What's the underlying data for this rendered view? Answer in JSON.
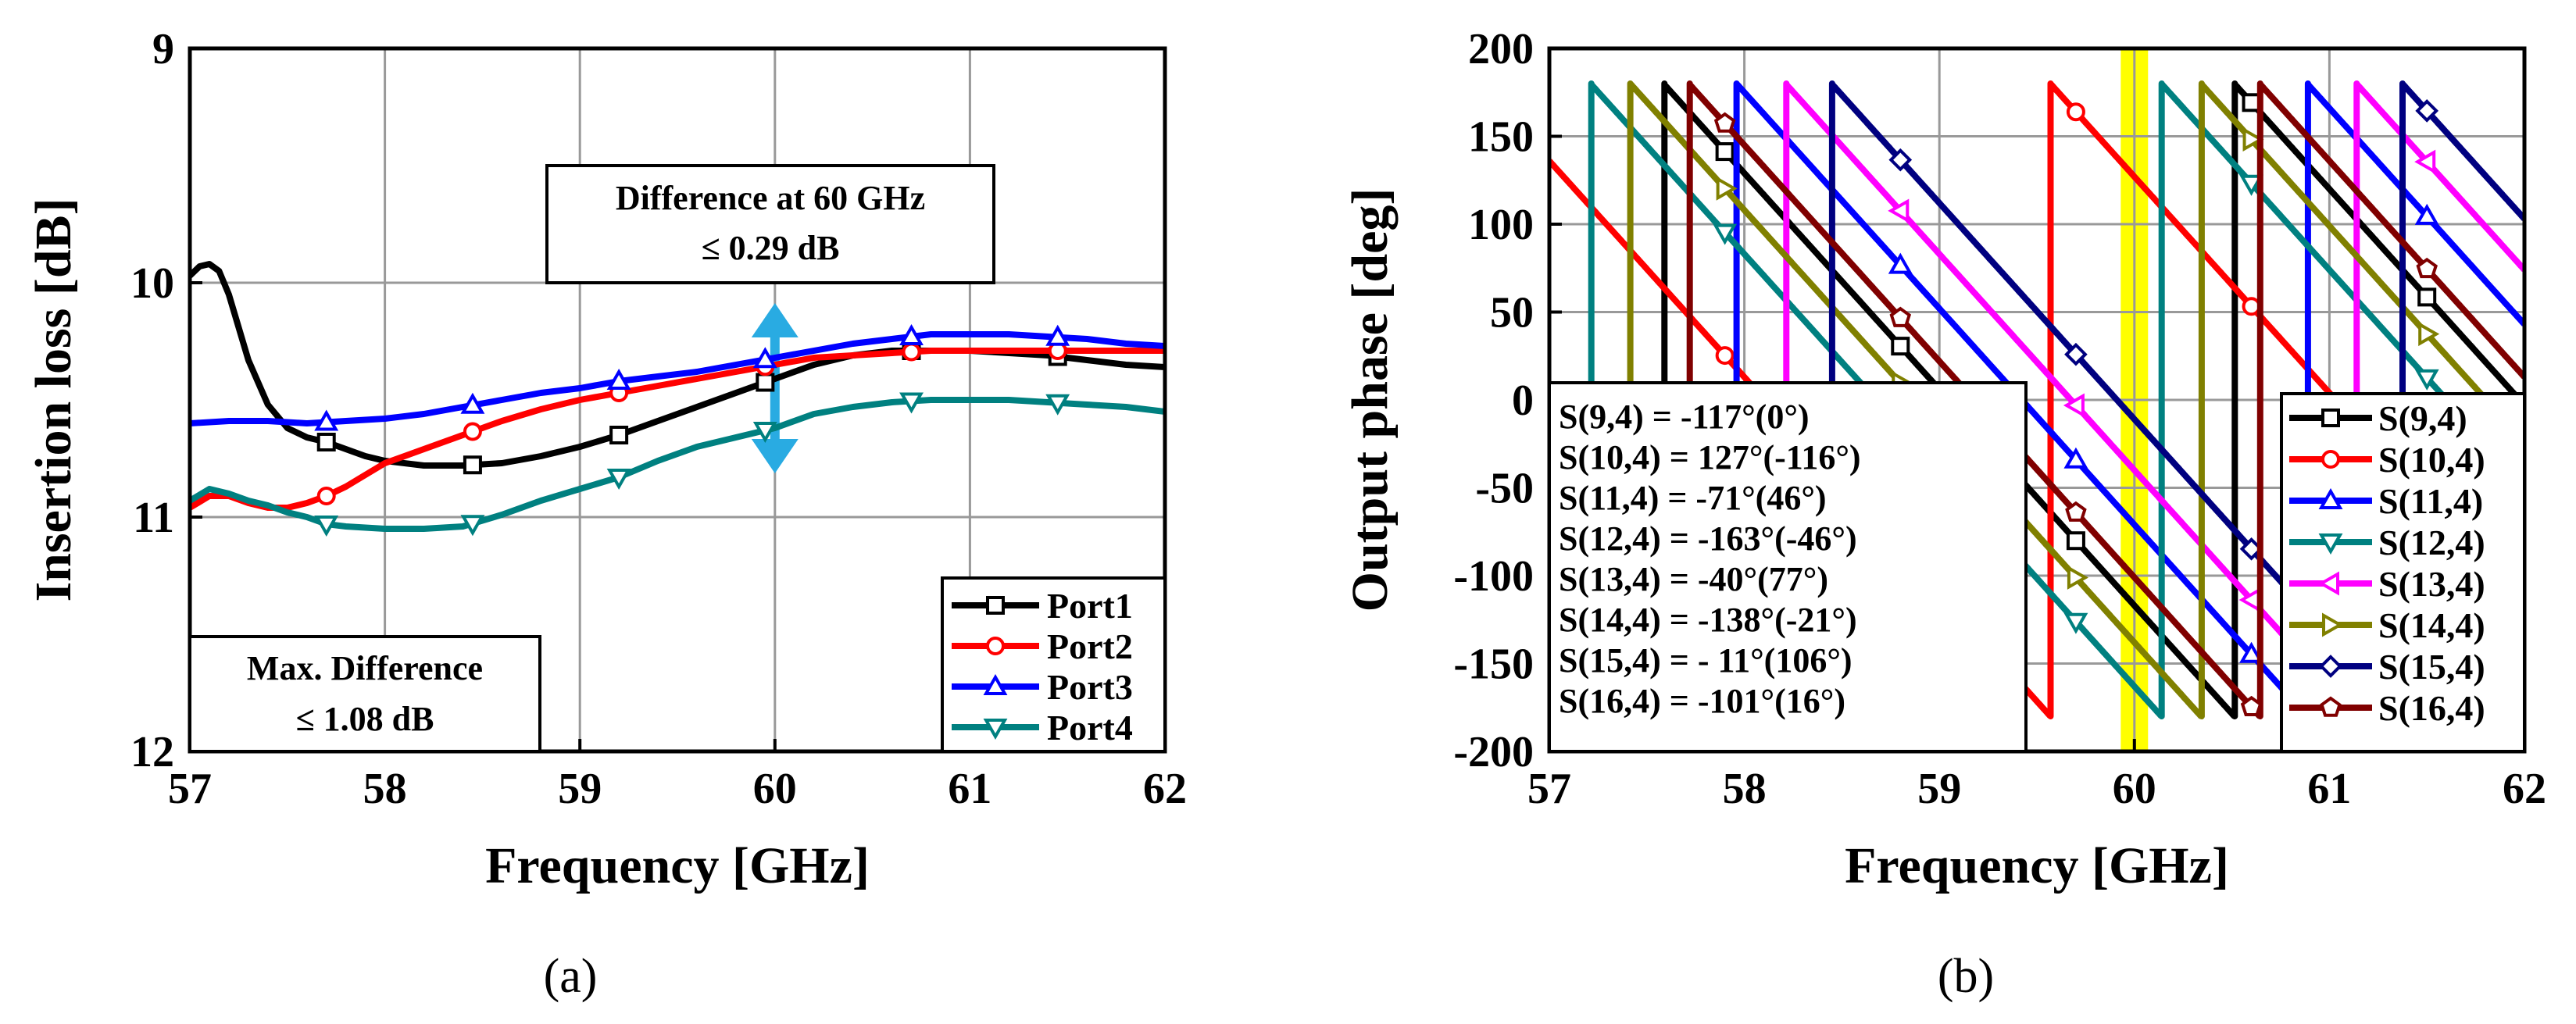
{
  "chart_data": [
    {
      "type": "line",
      "panel_label": "(a)",
      "xlabel": "Frequency [GHz]",
      "ylabel": "Insertion loss [dB]",
      "xlim": [
        57,
        62
      ],
      "ylim": [
        12,
        9
      ],
      "y_inverted": true,
      "x_ticks": [
        "57",
        "58",
        "59",
        "60",
        "61",
        "62"
      ],
      "y_ticks": [
        "9",
        "10",
        "11",
        "12"
      ],
      "grid": true,
      "legend_position": "bottom-right",
      "annotations": {
        "top_box_line1": "Difference at 60 GHz",
        "top_box_line2": "≤ 0.29 dB",
        "bottom_box_line1": "Max. Difference",
        "bottom_box_line2": "≤ 1.08 dB",
        "arrow_x": 60,
        "arrow_y_range": [
          10.1,
          10.8
        ]
      },
      "series": [
        {
          "name": "Port1",
          "color": "#000000",
          "marker": "square",
          "x": [
            57.0,
            57.05,
            57.1,
            57.15,
            57.2,
            57.3,
            57.4,
            57.5,
            57.6,
            57.7,
            57.8,
            57.9,
            58.0,
            58.2,
            58.4,
            58.6,
            58.8,
            59.0,
            59.2,
            59.4,
            59.6,
            59.8,
            60.0,
            60.2,
            60.4,
            60.6,
            60.8,
            61.0,
            61.2,
            61.4,
            61.6,
            61.8,
            62.0
          ],
          "y": [
            9.97,
            9.93,
            9.92,
            9.95,
            10.05,
            10.33,
            10.52,
            10.62,
            10.66,
            10.68,
            10.71,
            10.74,
            10.76,
            10.78,
            10.78,
            10.77,
            10.74,
            10.7,
            10.65,
            10.59,
            10.53,
            10.47,
            10.41,
            10.35,
            10.31,
            10.29,
            10.29,
            10.29,
            10.3,
            10.31,
            10.33,
            10.35,
            10.36
          ]
        },
        {
          "name": "Port2",
          "color": "#ff0000",
          "marker": "circle",
          "x": [
            57.0,
            57.1,
            57.2,
            57.3,
            57.4,
            57.5,
            57.6,
            57.7,
            57.8,
            57.9,
            58.0,
            58.2,
            58.4,
            58.6,
            58.8,
            59.0,
            59.2,
            59.4,
            59.6,
            59.8,
            60.0,
            60.2,
            60.4,
            60.6,
            60.8,
            61.0,
            61.2,
            61.4,
            61.6,
            61.8,
            62.0
          ],
          "y": [
            10.96,
            10.91,
            10.91,
            10.94,
            10.96,
            10.96,
            10.94,
            10.91,
            10.87,
            10.82,
            10.77,
            10.71,
            10.65,
            10.59,
            10.54,
            10.5,
            10.47,
            10.44,
            10.41,
            10.38,
            10.35,
            10.32,
            10.31,
            10.3,
            10.29,
            10.29,
            10.29,
            10.29,
            10.29,
            10.29,
            10.29
          ]
        },
        {
          "name": "Port3",
          "color": "#0000ff",
          "marker": "triangle-up",
          "x": [
            57.0,
            57.2,
            57.4,
            57.6,
            57.8,
            58.0,
            58.2,
            58.4,
            58.6,
            58.8,
            59.0,
            59.2,
            59.4,
            59.6,
            59.8,
            60.0,
            60.2,
            60.4,
            60.6,
            60.8,
            61.0,
            61.2,
            61.4,
            61.6,
            61.8,
            62.0
          ],
          "y": [
            10.6,
            10.59,
            10.59,
            10.6,
            10.59,
            10.58,
            10.56,
            10.53,
            10.5,
            10.47,
            10.45,
            10.42,
            10.4,
            10.38,
            10.35,
            10.32,
            10.29,
            10.26,
            10.24,
            10.22,
            10.22,
            10.22,
            10.23,
            10.24,
            10.26,
            10.27
          ]
        },
        {
          "name": "Port4",
          "color": "#008080",
          "marker": "triangle-down",
          "x": [
            57.0,
            57.1,
            57.2,
            57.3,
            57.4,
            57.5,
            57.6,
            57.7,
            57.8,
            58.0,
            58.2,
            58.4,
            58.6,
            58.8,
            59.0,
            59.2,
            59.4,
            59.6,
            59.8,
            60.0,
            60.2,
            60.4,
            60.6,
            60.8,
            61.0,
            61.2,
            61.4,
            61.6,
            61.8,
            62.0
          ],
          "y": [
            10.93,
            10.88,
            10.9,
            10.93,
            10.95,
            10.98,
            11.0,
            11.03,
            11.04,
            11.05,
            11.05,
            11.04,
            10.99,
            10.93,
            10.88,
            10.83,
            10.76,
            10.7,
            10.66,
            10.62,
            10.56,
            10.53,
            10.51,
            10.5,
            10.5,
            10.5,
            10.51,
            10.52,
            10.53,
            10.55
          ]
        }
      ]
    },
    {
      "type": "line",
      "panel_label": "(b)",
      "xlabel": "Frequency [GHz]",
      "ylabel": "Output phase [deg]",
      "xlim": [
        57,
        62
      ],
      "ylim": [
        -200,
        200
      ],
      "x_ticks": [
        "57",
        "58",
        "59",
        "60",
        "61",
        "62"
      ],
      "y_ticks": [
        "-200",
        "-150",
        "-100",
        "-50",
        "0",
        "50",
        "100",
        "150",
        "200"
      ],
      "grid": true,
      "legend_position": "bottom-right",
      "highlight_band": [
        59.93,
        60.07
      ],
      "highlight_color": "#ffff00",
      "phase_slope_deg_per_ghz": -123,
      "annotation_lines": [
        "S(9,4) = -117°(0°)",
        "S(10,4) = 127°(-116°)",
        "S(11,4) = -71°(46°)",
        "S(12,4) = -163°(-46°)",
        "S(13,4) = -40°(77°)",
        "S(14,4) = -138°(-21°)",
        "S(15,4) = - 11°(106°)",
        "S(16,4) = -101°(16°)"
      ],
      "series": [
        {
          "name": "S(9,4)",
          "color": "#000000",
          "marker": "square",
          "phase_at_60GHz": -117
        },
        {
          "name": "S(10,4)",
          "color": "#ff0000",
          "marker": "circle",
          "phase_at_60GHz": 127
        },
        {
          "name": "S(11,4)",
          "color": "#0000ff",
          "marker": "triangle-up",
          "phase_at_60GHz": -71
        },
        {
          "name": "S(12,4)",
          "color": "#008080",
          "marker": "triangle-down",
          "phase_at_60GHz": -163
        },
        {
          "name": "S(13,4)",
          "color": "#ff00ff",
          "marker": "triangle-left",
          "phase_at_60GHz": -40
        },
        {
          "name": "S(14,4)",
          "color": "#808000",
          "marker": "triangle-right",
          "phase_at_60GHz": -138
        },
        {
          "name": "S(15,4)",
          "color": "#000080",
          "marker": "diamond",
          "phase_at_60GHz": -11
        },
        {
          "name": "S(16,4)",
          "color": "#800000",
          "marker": "pentagon",
          "phase_at_60GHz": -101
        }
      ]
    }
  ]
}
